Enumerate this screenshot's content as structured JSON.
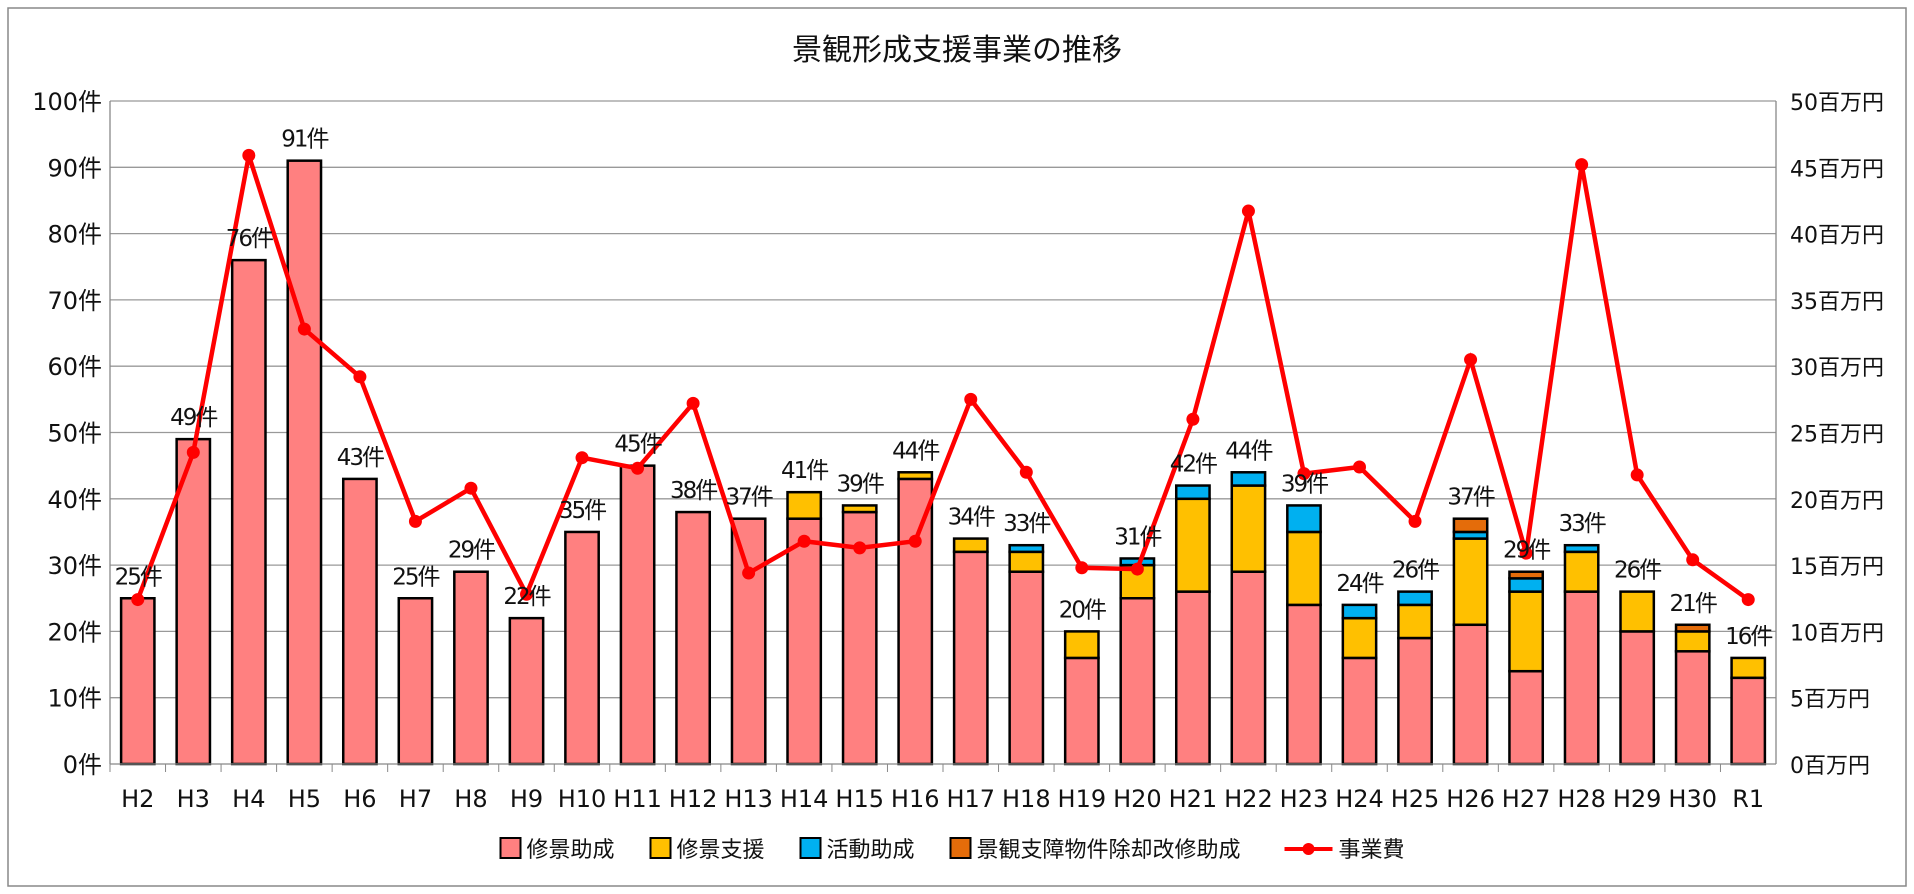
{
  "chart_data": {
    "type": "bar",
    "stacked": true,
    "title": "景観形成支援事業の推移",
    "categories": [
      "H2",
      "H3",
      "H4",
      "H5",
      "H6",
      "H7",
      "H8",
      "H9",
      "H10",
      "H11",
      "H12",
      "H13",
      "H14",
      "H15",
      "H16",
      "H17",
      "H18",
      "H19",
      "H20",
      "H21",
      "H22",
      "H23",
      "H24",
      "H25",
      "H26",
      "H27",
      "H28",
      "H29",
      "H30",
      "R1"
    ],
    "series": [
      {
        "name": "修景助成",
        "color": "#ff8080",
        "values": [
          25,
          49,
          76,
          91,
          43,
          25,
          29,
          22,
          35,
          45,
          38,
          37,
          37,
          38,
          43,
          32,
          29,
          16,
          25,
          26,
          29,
          24,
          16,
          19,
          21,
          14,
          26,
          20,
          17,
          13
        ]
      },
      {
        "name": "修景支援",
        "color": "#ffc000",
        "values": [
          0,
          0,
          0,
          0,
          0,
          0,
          0,
          0,
          0,
          0,
          0,
          0,
          4,
          1,
          1,
          2,
          3,
          4,
          5,
          14,
          13,
          11,
          6,
          5,
          13,
          12,
          6,
          6,
          3,
          3
        ]
      },
      {
        "name": "活動助成",
        "color": "#00b0f0",
        "values": [
          0,
          0,
          0,
          0,
          0,
          0,
          0,
          0,
          0,
          0,
          0,
          0,
          0,
          0,
          0,
          0,
          1,
          0,
          1,
          2,
          2,
          4,
          2,
          2,
          1,
          2,
          1,
          0,
          0,
          0
        ]
      },
      {
        "name": "景観支障物件除却改修助成",
        "color": "#e46c0a",
        "values": [
          0,
          0,
          0,
          0,
          0,
          0,
          0,
          0,
          0,
          0,
          0,
          0,
          0,
          0,
          0,
          0,
          0,
          0,
          0,
          0,
          0,
          0,
          0,
          0,
          2,
          1,
          0,
          0,
          1,
          0
        ]
      }
    ],
    "line_series": {
      "name": "事業費",
      "color": "#ff0000",
      "axis": "right",
      "values": [
        12.4,
        23.5,
        45.9,
        32.8,
        29.2,
        18.3,
        20.8,
        12.8,
        23.1,
        22.3,
        27.2,
        14.4,
        16.8,
        16.3,
        16.8,
        27.5,
        22.0,
        14.8,
        14.7,
        26.0,
        41.7,
        21.9,
        22.4,
        18.3,
        30.5,
        15.9,
        45.2,
        21.8,
        15.4,
        12.4
      ]
    },
    "totals_labels": [
      "25件",
      "49件",
      "76件",
      "91件",
      "43件",
      "25件",
      "29件",
      "22件",
      "35件",
      "45件",
      "38件",
      "37件",
      "41件",
      "39件",
      "44件",
      "34件",
      "33件",
      "20件",
      "31件",
      "42件",
      "44件",
      "39件",
      "24件",
      "26件",
      "37件",
      "29件",
      "33件",
      "26件",
      "21件",
      "16件"
    ],
    "y_left": {
      "range": [
        0,
        100
      ],
      "ticks": [
        "0件",
        "10件",
        "20件",
        "30件",
        "40件",
        "50件",
        "60件",
        "70件",
        "80件",
        "90件",
        "100件"
      ]
    },
    "y_right": {
      "range": [
        0,
        50
      ],
      "ticks": [
        "0百万円",
        "5百万円",
        "10百万円",
        "15百万円",
        "20百万円",
        "25百万円",
        "30百万円",
        "35百万円",
        "40百万円",
        "45百万円",
        "50百万円"
      ]
    },
    "grid": true,
    "legend": "bottom"
  }
}
